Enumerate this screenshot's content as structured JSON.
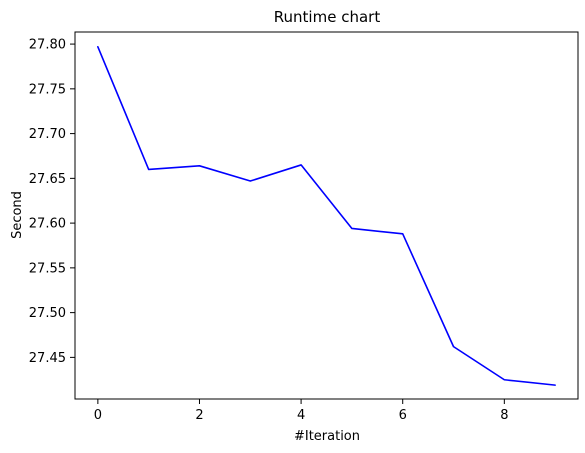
{
  "chart_data": {
    "type": "line",
    "title": "Runtime chart",
    "xlabel": "#Iteration",
    "ylabel": "Second",
    "x": [
      0,
      1,
      2,
      3,
      4,
      5,
      6,
      7,
      8,
      9
    ],
    "series": [
      {
        "values": [
          27.797,
          27.66,
          27.664,
          27.647,
          27.665,
          27.594,
          27.588,
          27.462,
          27.425,
          27.419
        ],
        "color": "#0000ff"
      }
    ],
    "xlim": [
      -0.45,
      9.45
    ],
    "ylim": [
      27.4035,
      27.8135
    ],
    "xticks": [
      0,
      2,
      4,
      6,
      8
    ],
    "xtick_labels": [
      "0",
      "2",
      "4",
      "6",
      "8"
    ],
    "yticks": [
      27.45,
      27.5,
      27.55,
      27.6,
      27.65,
      27.7,
      27.75,
      27.8
    ],
    "ytick_labels": [
      "27.45",
      "27.50",
      "27.55",
      "27.60",
      "27.65",
      "27.70",
      "27.75",
      "27.80"
    ],
    "grid": false,
    "legend": "none"
  }
}
